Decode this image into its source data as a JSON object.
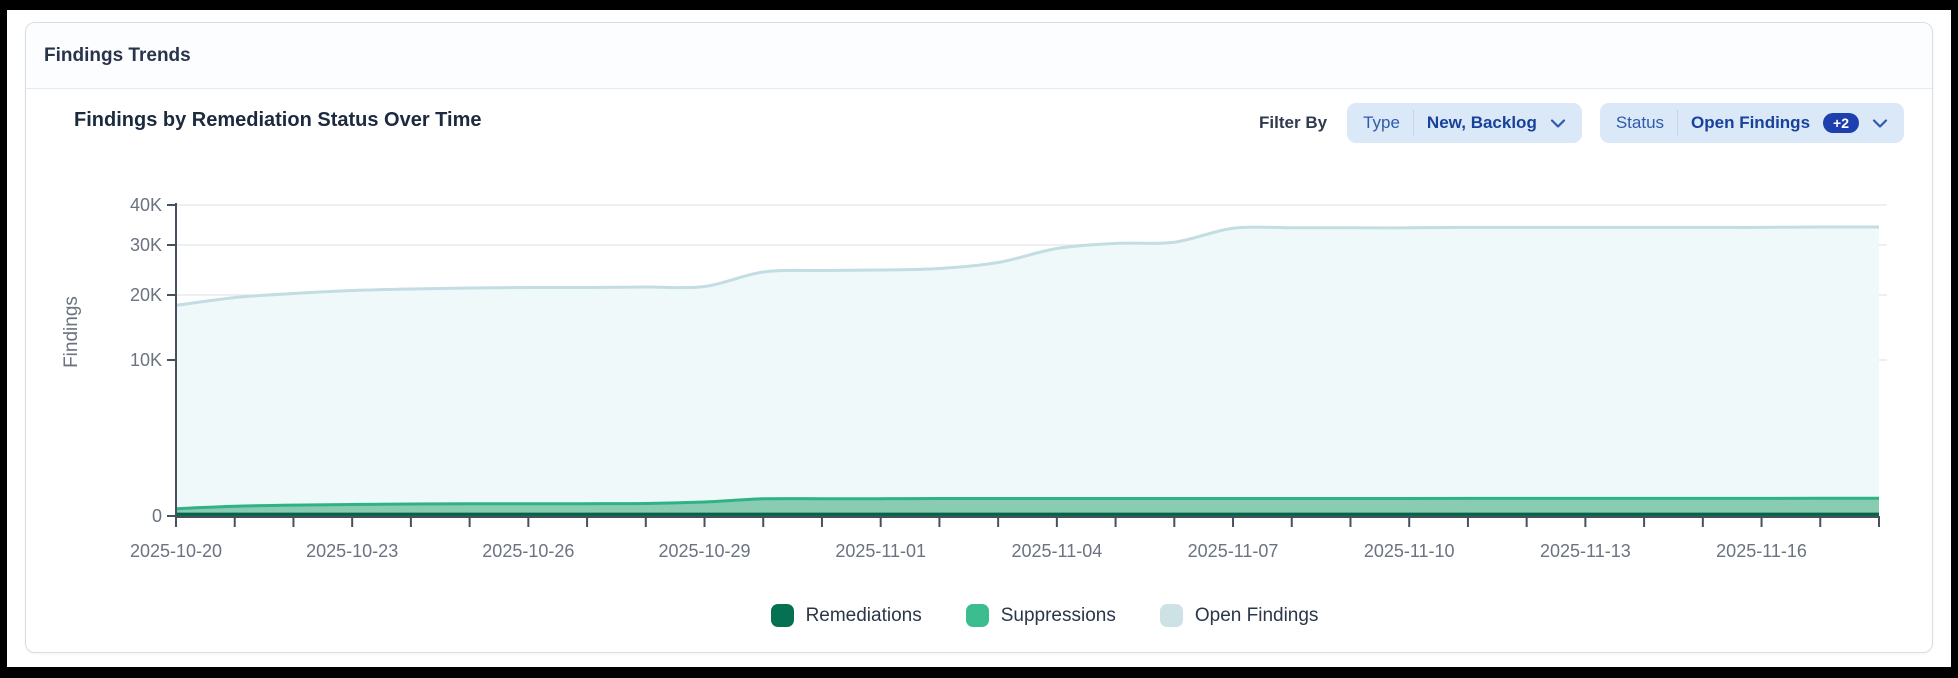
{
  "panel": {
    "title": "Findings Trends"
  },
  "header_controls": {
    "filter_by_label": "Filter By",
    "filters": [
      {
        "label": "Type",
        "value": "New, Backlog",
        "extra_count": null
      },
      {
        "label": "Status",
        "value": "Open Findings",
        "extra_count": "+2"
      }
    ]
  },
  "colors": {
    "pill_bg": "#dbe8f8",
    "pill_label": "#2c5cab",
    "pill_value": "#17429b",
    "badge_bg": "#1e40af",
    "axis": "#46505f",
    "grid": "#e8eaee",
    "tick_label": "#6a7380"
  },
  "chart_data": {
    "type": "area",
    "stacked": true,
    "title": "Findings by Remediation Status Over Time",
    "xlabel": "",
    "ylabel": "Findings",
    "ylim": [
      0,
      40000
    ],
    "grid": "horizontal",
    "legend_position": "bottom",
    "x": [
      "2025-10-20",
      "2025-10-21",
      "2025-10-22",
      "2025-10-23",
      "2025-10-24",
      "2025-10-25",
      "2025-10-26",
      "2025-10-27",
      "2025-10-28",
      "2025-10-29",
      "2025-10-30",
      "2025-10-31",
      "2025-11-01",
      "2025-11-02",
      "2025-11-03",
      "2025-11-04",
      "2025-11-05",
      "2025-11-06",
      "2025-11-07",
      "2025-11-08",
      "2025-11-09",
      "2025-11-10",
      "2025-11-11",
      "2025-11-12",
      "2025-11-13",
      "2025-11-14",
      "2025-11-15",
      "2025-11-16",
      "2025-11-17",
      "2025-11-18"
    ],
    "x_tick_label_every": 3,
    "y_ticks": [
      {
        "value": 0,
        "label": "0"
      },
      {
        "value": 10000,
        "label": "10K"
      },
      {
        "value": 20000,
        "label": "20K"
      },
      {
        "value": 30000,
        "label": "30K"
      },
      {
        "value": 40000,
        "label": "40K"
      }
    ],
    "series": [
      {
        "name": "Remediations",
        "fill": "#0b7a59",
        "stroke": "#076248",
        "legend_color": "#067152",
        "values": [
          120,
          120,
          120,
          120,
          120,
          120,
          120,
          120,
          120,
          120,
          120,
          120,
          120,
          120,
          120,
          120,
          120,
          120,
          120,
          120,
          120,
          120,
          120,
          120,
          120,
          120,
          120,
          120,
          120,
          120
        ]
      },
      {
        "name": "Suppressions",
        "fill": "#8accb1",
        "stroke": "#2eb286",
        "legend_color": "#3bbd90",
        "values": [
          350,
          500,
          580,
          620,
          650,
          660,
          660,
          670,
          680,
          780,
          980,
          990,
          990,
          1000,
          1000,
          1000,
          1000,
          1000,
          1000,
          1000,
          1000,
          1000,
          1010,
          1010,
          1010,
          1010,
          1010,
          1010,
          1020,
          1020
        ]
      },
      {
        "name": "Open Findings",
        "fill": "#eff9fa",
        "stroke": "#c3dde2",
        "legend_color": "#cde2e5",
        "values": [
          17930,
          18980,
          19600,
          20160,
          20430,
          20620,
          20720,
          20710,
          20800,
          20800,
          23500,
          23790,
          23890,
          24180,
          25380,
          28180,
          29280,
          29580,
          33080,
          33180,
          33180,
          33180,
          33270,
          33270,
          33270,
          33270,
          33270,
          33270,
          33360,
          33360
        ]
      }
    ]
  }
}
